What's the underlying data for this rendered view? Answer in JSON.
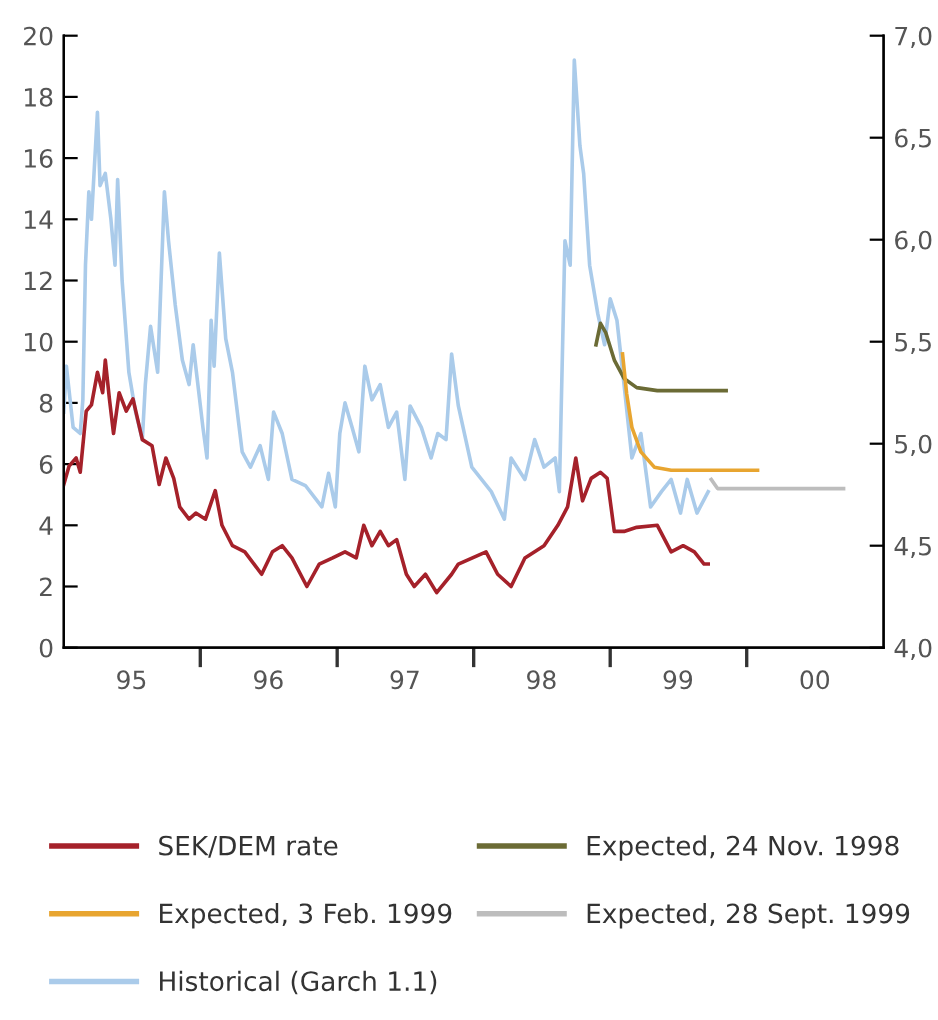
{
  "chart_data": {
    "type": "line",
    "xlim": [
      "1995-01-01",
      "2001-01-01"
    ],
    "xticks": [
      {
        "value": "1995-07-01",
        "label": "95"
      },
      {
        "value": "1996-01-01",
        "label": null
      },
      {
        "value": "1996-07-01",
        "label": "96"
      },
      {
        "value": "1997-01-01",
        "label": null
      },
      {
        "value": "1997-07-01",
        "label": "97"
      },
      {
        "value": "1998-01-01",
        "label": null
      },
      {
        "value": "1998-07-01",
        "label": "98"
      },
      {
        "value": "1999-01-01",
        "label": null
      },
      {
        "value": "1999-07-01",
        "label": "99"
      },
      {
        "value": "2000-01-01",
        "label": null
      },
      {
        "value": "2000-07-01",
        "label": "00"
      }
    ],
    "ylim": [
      0,
      20
    ],
    "yticks": [
      0,
      2,
      4,
      6,
      8,
      10,
      12,
      14,
      16,
      18,
      20
    ],
    "y2lim": [
      4.0,
      7.0
    ],
    "y2ticks": [
      {
        "value": 4.0,
        "label": "4,0"
      },
      {
        "value": 4.5,
        "label": "4,5"
      },
      {
        "value": 5.0,
        "label": "5,0"
      },
      {
        "value": 5.5,
        "label": "5,5"
      },
      {
        "value": 6.0,
        "label": "6,0"
      },
      {
        "value": 6.5,
        "label": "6,5"
      },
      {
        "value": 7.0,
        "label": "7,0"
      }
    ],
    "grid": false,
    "legend": "bottom",
    "series": [
      {
        "name": "Historical (Garch 1.1)",
        "color": "#aacbea",
        "x": [
          "1995-01-01",
          "1995-01-08",
          "1995-01-26",
          "1995-02-14",
          "1995-02-21",
          "1995-02-28",
          "1995-03-09",
          "1995-03-16",
          "1995-04-01",
          "1995-04-08",
          "1995-04-22",
          "1995-05-07",
          "1995-05-18",
          "1995-05-25",
          "1995-06-06",
          "1995-06-24",
          "1995-07-12",
          "1995-07-30",
          "1995-08-07",
          "1995-08-21",
          "1995-09-09",
          "1995-09-27",
          "1995-10-08",
          "1995-10-26",
          "1995-11-14",
          "1995-12-02",
          "1995-12-13",
          "1996-01-08",
          "1996-01-19",
          "1996-01-30",
          "1996-02-07",
          "1996-02-21",
          "1996-03-09",
          "1996-03-27",
          "1996-04-22",
          "1996-05-14",
          "1996-06-09",
          "1996-07-01",
          "1996-07-15",
          "1996-08-07",
          "1996-09-02",
          "1996-10-08",
          "1996-11-21",
          "1996-12-09",
          "1996-12-27",
          "1997-01-08",
          "1997-01-22",
          "1997-02-10",
          "1997-02-28",
          "1997-03-16",
          "1997-04-04",
          "1997-04-26",
          "1997-05-18",
          "1997-06-09",
          "1997-07-01",
          "1997-07-15",
          "1997-08-14",
          "1997-09-09",
          "1997-09-27",
          "1997-10-19",
          "1997-11-03",
          "1997-11-21",
          "1997-12-27",
          "1998-02-17",
          "1998-03-24",
          "1998-04-11",
          "1998-05-18",
          "1998-06-13",
          "1998-07-08",
          "1998-08-07",
          "1998-08-18",
          "1998-09-02",
          "1998-09-16",
          "1998-09-27",
          "1998-10-12",
          "1998-10-22",
          "1998-11-07",
          "1998-11-29",
          "1998-12-17",
          "1999-01-01",
          "1999-01-19",
          "1999-02-07",
          "1999-02-28",
          "1999-03-24",
          "1999-04-19",
          "1999-05-18",
          "1999-06-13",
          "1999-07-08",
          "1999-07-26",
          "1999-08-21",
          "1999-09-20"
        ],
        "values": [
          7.7,
          9.2,
          7.2,
          7.0,
          8.1,
          12.5,
          14.9,
          14.0,
          17.5,
          15.1,
          15.5,
          14.0,
          12.5,
          15.3,
          12.0,
          9.0,
          7.7,
          6.8,
          8.6,
          10.5,
          9.0,
          14.9,
          13.3,
          11.2,
          9.4,
          8.6,
          9.9,
          7.2,
          6.2,
          10.7,
          9.2,
          12.9,
          10.1,
          9.0,
          6.4,
          5.9,
          6.6,
          5.5,
          7.7,
          7.0,
          5.5,
          5.3,
          4.6,
          5.7,
          4.6,
          7.0,
          8.0,
          7.2,
          6.4,
          9.2,
          8.1,
          8.6,
          7.2,
          7.7,
          5.5,
          7.9,
          7.2,
          6.2,
          7.0,
          6.8,
          9.6,
          7.9,
          5.9,
          5.1,
          4.2,
          6.2,
          5.5,
          6.8,
          5.9,
          6.2,
          5.1,
          13.3,
          12.5,
          19.2,
          16.4,
          15.5,
          12.5,
          10.9,
          9.9,
          11.4,
          10.7,
          8.6,
          6.2,
          7.0,
          4.6,
          5.1,
          5.5,
          4.4,
          5.5,
          4.4,
          5.1
        ]
      },
      {
        "name": "SEK/DEM rate",
        "color": "#a5212a",
        "axis": "y2",
        "x": [
          "1995-01-01",
          "1995-01-15",
          "1995-02-03",
          "1995-02-14",
          "1995-03-02",
          "1995-03-16",
          "1995-04-01",
          "1995-04-15",
          "1995-04-22",
          "1995-05-03",
          "1995-05-14",
          "1995-05-29",
          "1995-06-17",
          "1995-07-05",
          "1995-07-30",
          "1995-08-25",
          "1995-09-13",
          "1995-10-01",
          "1995-10-22",
          "1995-11-07",
          "1995-12-02",
          "1995-12-20",
          "1996-01-15",
          "1996-02-10",
          "1996-02-28",
          "1996-03-27",
          "1996-04-29",
          "1996-06-13",
          "1996-07-12",
          "1996-08-07",
          "1996-09-02",
          "1996-10-12",
          "1996-11-14",
          "1996-12-20",
          "1997-01-22",
          "1997-02-21",
          "1997-03-13",
          "1997-04-04",
          "1997-04-26",
          "1997-05-18",
          "1997-06-09",
          "1997-07-05",
          "1997-07-26",
          "1997-08-25",
          "1997-09-24",
          "1997-11-03",
          "1997-11-21",
          "1998-02-03",
          "1998-03-06",
          "1998-04-11",
          "1998-05-18",
          "1998-07-08",
          "1998-08-14",
          "1998-09-09",
          "1998-10-01",
          "1998-10-19",
          "1998-11-11",
          "1998-12-06",
          "1998-12-24",
          "1999-01-12",
          "1999-02-07",
          "1999-03-13",
          "1999-05-07",
          "1999-06-13",
          "1999-07-15",
          "1999-08-14",
          "1999-09-09",
          "1999-09-20"
        ],
        "values": [
          4.8,
          4.89,
          4.93,
          4.86,
          5.16,
          5.19,
          5.35,
          5.25,
          5.41,
          5.22,
          5.05,
          5.25,
          5.16,
          5.22,
          5.02,
          4.99,
          4.8,
          4.93,
          4.83,
          4.69,
          4.63,
          4.66,
          4.63,
          4.77,
          4.6,
          4.5,
          4.47,
          4.36,
          4.47,
          4.5,
          4.44,
          4.3,
          4.41,
          4.44,
          4.47,
          4.44,
          4.6,
          4.5,
          4.57,
          4.5,
          4.53,
          4.36,
          4.3,
          4.36,
          4.27,
          4.36,
          4.41,
          4.47,
          4.36,
          4.3,
          4.44,
          4.5,
          4.6,
          4.69,
          4.93,
          4.72,
          4.83,
          4.86,
          4.83,
          4.57,
          4.57,
          4.59,
          4.6,
          4.47,
          4.5,
          4.47,
          4.41,
          4.41
        ]
      },
      {
        "name": "Expected, 24 Nov. 1998",
        "color": "#6b6b35",
        "x": [
          "1998-11-24",
          "1998-12-06",
          "1998-12-20",
          "1999-01-12",
          "1999-02-07",
          "1999-03-13",
          "1999-05-07",
          "1999-11-07"
        ],
        "values": [
          9.9,
          10.6,
          10.3,
          9.4,
          8.8,
          8.5,
          8.4,
          8.4
        ]
      },
      {
        "name": "Expected, 3 Feb. 1999",
        "color": "#e8a530",
        "x": [
          "1999-02-03",
          "1999-02-14",
          "1999-02-28",
          "1999-03-24",
          "1999-04-29",
          "1999-06-13",
          "2000-01-30"
        ],
        "values": [
          9.6,
          8.3,
          7.2,
          6.4,
          5.9,
          5.8,
          5.8
        ]
      },
      {
        "name": "Expected, 28 Sept. 1999",
        "color": "#bdbdbd",
        "x": [
          "1999-09-28",
          "1999-10-15",
          "1999-11-21",
          "2000-09-16"
        ],
        "values": [
          5.5,
          5.2,
          5.2,
          5.2
        ]
      }
    ]
  }
}
